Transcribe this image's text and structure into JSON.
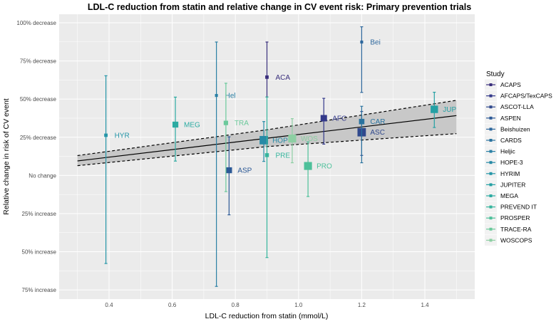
{
  "chart_data": {
    "type": "scatter",
    "title": "LDL-C reduction from statin and relative change in CV event risk: Primary prevention trials",
    "xlabel": "LDL-C reduction from statin (mmol/L)",
    "ylabel": "Relative change in risk of CV event",
    "xlim": [
      0.242,
      1.558
    ],
    "ylim": [
      -81,
      105.6
    ],
    "x_ticks": [
      0.4,
      0.6,
      0.8,
      1.0,
      1.2,
      1.4
    ],
    "x_tick_labels": [
      "0.4",
      "0.6",
      "0.8",
      "1.0",
      "1.2",
      "1.4"
    ],
    "y_ticks": [
      100,
      75,
      50,
      25,
      0,
      -25,
      -50,
      -75
    ],
    "y_tick_labels": [
      "100% decrease",
      "75% decrease",
      "50% decrease",
      "25% decrease",
      "No change",
      "25% increase",
      "50% increase",
      "75% increase"
    ],
    "grid": true,
    "legend_title": "Study",
    "legend_position": "right",
    "regression": {
      "x": [
        0.3,
        1.5
      ],
      "y": [
        9.5,
        39.2
      ],
      "band_x": [
        0.3,
        0.9,
        1.5
      ],
      "band_upper": [
        13,
        29.9,
        49.2
      ],
      "band_lower": [
        6.4,
        18.9,
        27.4
      ]
    },
    "points": [
      {
        "study": "ACAPS",
        "label": "ACA",
        "x": 0.9,
        "y": 64.4,
        "lo": 51.4,
        "hi": 87.4,
        "weight": 2,
        "color": "#3a2f7d"
      },
      {
        "study": "AFCAPS/TexCAPS",
        "label": "AFC",
        "x": 1.08,
        "y": 37.5,
        "lo": 20.5,
        "hi": 50.5,
        "weight": 5,
        "color": "#33398a"
      },
      {
        "study": "ASCOT-LLA",
        "label": "ASC",
        "x": 1.2,
        "y": 28.3,
        "lo": 13.1,
        "hi": 41.9,
        "weight": 7,
        "color": "#30498d"
      },
      {
        "study": "ASPEN",
        "label": "ASP",
        "x": 0.78,
        "y": 3.4,
        "lo": -25.8,
        "hi": 25.3,
        "weight": 4.5,
        "color": "#2c5996"
      },
      {
        "study": "Beishuizen",
        "label": "Bei",
        "x": 1.2,
        "y": 87.4,
        "lo": 54.4,
        "hi": 97.4,
        "weight": 1.5,
        "color": "#2d679c"
      },
      {
        "study": "CARDS",
        "label": "CAR",
        "x": 1.2,
        "y": 35.3,
        "lo": 8.3,
        "hi": 45.3,
        "weight": 4,
        "color": "#2a739f"
      },
      {
        "study": "Heljic",
        "label": "Hel",
        "x": 0.74,
        "y": 52.4,
        "lo": -72.7,
        "hi": 87.4,
        "weight": 1.5,
        "color": "#2a80a5"
      },
      {
        "study": "HOPE-3",
        "label": "HOP",
        "x": 0.89,
        "y": 23.1,
        "lo": 9.2,
        "hi": 35.3,
        "weight": 7,
        "color": "#278aa6"
      },
      {
        "study": "HYRIM",
        "label": "HYR",
        "x": 0.39,
        "y": 26.3,
        "lo": -57.7,
        "hi": 65.3,
        "weight": 2,
        "color": "#2596a8"
      },
      {
        "study": "JUPITER",
        "label": "JUP",
        "x": 1.43,
        "y": 43.3,
        "lo": 31.4,
        "hi": 54.5,
        "weight": 6,
        "color": "#24a0a4"
      },
      {
        "study": "MEGA",
        "label": "MEG",
        "x": 0.61,
        "y": 33.3,
        "lo": 9.4,
        "hi": 51.3,
        "weight": 4.5,
        "color": "#2caba2"
      },
      {
        "study": "PREVEND IT",
        "label": "PRE",
        "x": 0.9,
        "y": 13.3,
        "lo": -53.8,
        "hi": 51.4,
        "weight": 2.5,
        "color": "#36b59d"
      },
      {
        "study": "PROSPER",
        "label": "PRO",
        "x": 1.03,
        "y": 6.2,
        "lo": -13.8,
        "hi": 22,
        "weight": 6.5,
        "color": "#4dc09a"
      },
      {
        "study": "TRACE-RA",
        "label": "TRA",
        "x": 0.77,
        "y": 34.4,
        "lo": -10.6,
        "hi": 60.4,
        "weight": 3,
        "color": "#6bc99b"
      },
      {
        "study": "WOSCOPS",
        "label": "WOS",
        "x": 0.98,
        "y": 24.2,
        "lo": 8.3,
        "hi": 37.2,
        "weight": 6.5,
        "color": "#8dcfa3"
      }
    ]
  }
}
